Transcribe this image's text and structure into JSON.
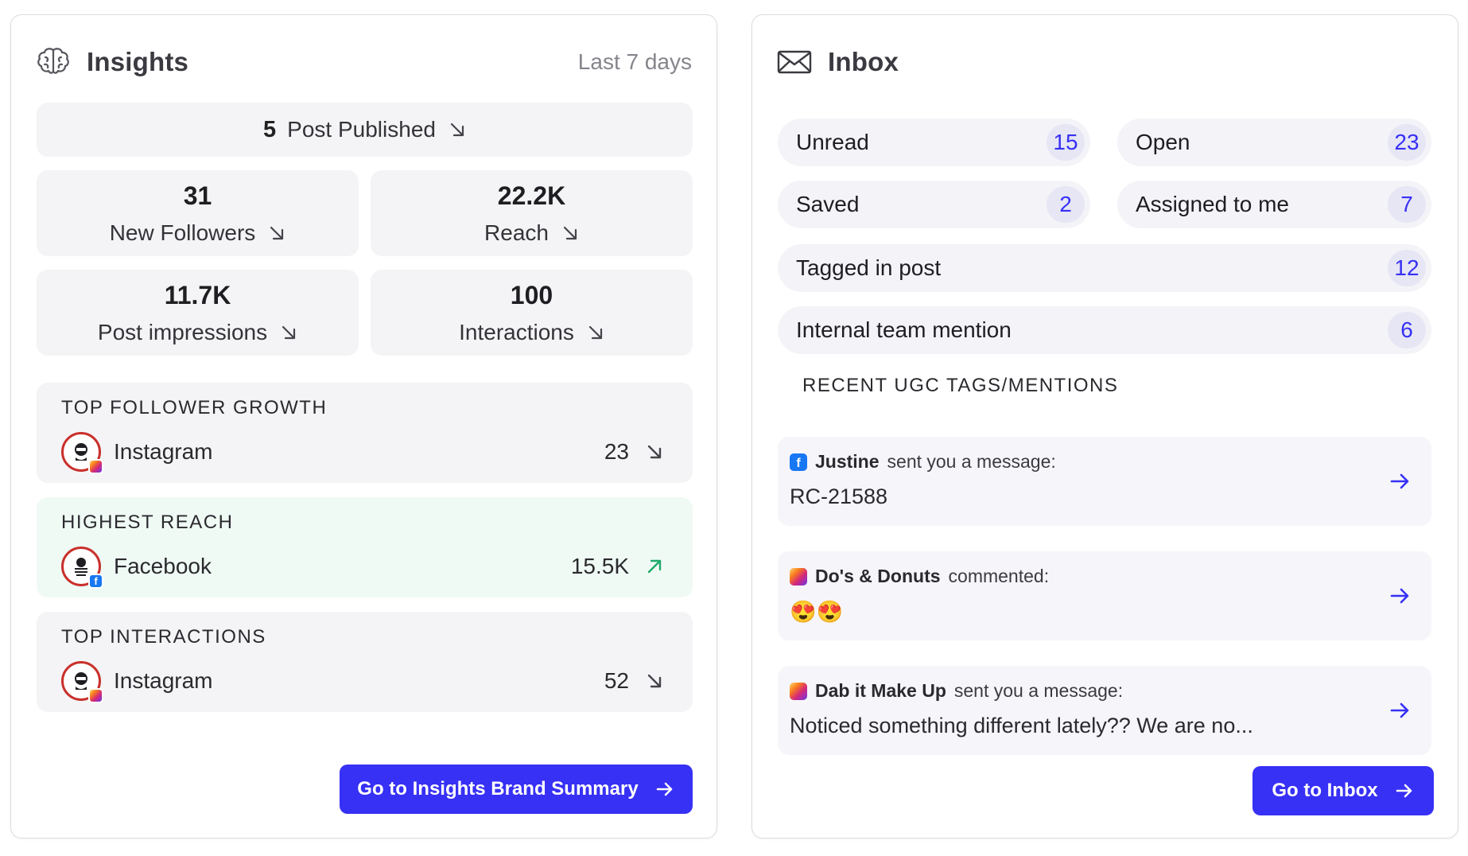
{
  "insights": {
    "title": "Insights",
    "range": "Last 7 days",
    "published": {
      "count": "5",
      "label": "Post Published"
    },
    "stats": {
      "followers": {
        "value": "31",
        "label": "New Followers"
      },
      "reach": {
        "value": "22.2K",
        "label": "Reach"
      },
      "impressions": {
        "value": "11.7K",
        "label": "Post impressions"
      },
      "interactions": {
        "value": "100",
        "label": "Interactions"
      }
    },
    "top_follower_growth": {
      "title": "TOP FOLLOWER GROWTH",
      "platform": "Instagram",
      "value": "23",
      "trend": "down"
    },
    "highest_reach": {
      "title": "HIGHEST REACH",
      "platform": "Facebook",
      "value": "15.5K",
      "trend": "up"
    },
    "top_interactions": {
      "title": "TOP INTERACTIONS",
      "platform": "Instagram",
      "value": "52",
      "trend": "down"
    },
    "button_label": "Go to Insights Brand Summary"
  },
  "inbox": {
    "title": "Inbox",
    "pills": {
      "unread": {
        "label": "Unread",
        "count": "15"
      },
      "open": {
        "label": "Open",
        "count": "23"
      },
      "saved": {
        "label": "Saved",
        "count": "2"
      },
      "assigned": {
        "label": "Assigned to me",
        "count": "7"
      },
      "tagged": {
        "label": "Tagged in post",
        "count": "12"
      },
      "mention": {
        "label": "Internal team mention",
        "count": "6"
      }
    },
    "ugc_title": "RECENT UGC TAGS/MENTIONS",
    "messages": [
      {
        "source": "facebook",
        "name": "Justine",
        "action": "sent you a message:",
        "body": "RC-21588"
      },
      {
        "source": "instagram",
        "name": "Do's & Donuts",
        "action": "commented:",
        "body": "😍😍"
      },
      {
        "source": "instagram",
        "name": "Dab it Make Up",
        "action": "sent you a message:",
        "body": "Noticed something different lately?? We are no..."
      }
    ],
    "button_label": "Go to Inbox"
  },
  "colors": {
    "accent": "#3730f5",
    "tile_bg": "#f4f4f6",
    "highlight_bg": "#f0faf5",
    "trend_up": "#1fa86a",
    "trend_down": "#44444a",
    "avatar_ring": "#c9302c"
  },
  "icons": {
    "insights_header": "brain-icon",
    "inbox_header": "envelope-icon",
    "trend_down": "arrow-down-right-icon",
    "trend_up": "arrow-up-right-icon",
    "message_open": "arrow-right-icon"
  }
}
